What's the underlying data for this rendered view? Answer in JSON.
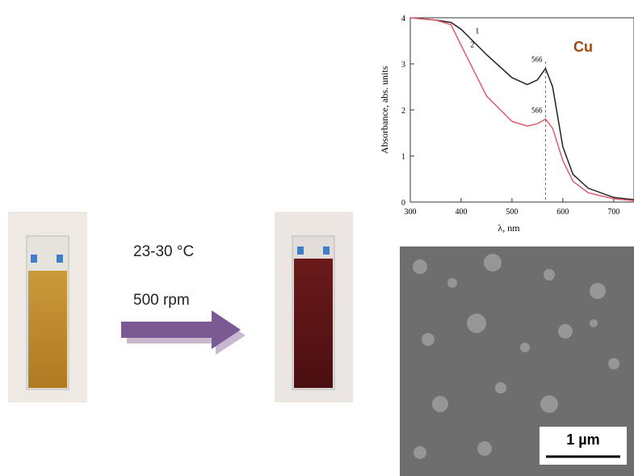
{
  "conditions": {
    "temperature": "23-30 °C",
    "speed": "500 rpm"
  },
  "scale_bar": "1 µm",
  "chart_data": {
    "type": "line",
    "x_label": "λ, nm",
    "y_label": "Absorbance, abs. units",
    "annotation": "Cu",
    "x": [
      300,
      350,
      380,
      400,
      450,
      500,
      530,
      550,
      566,
      580,
      600,
      620,
      650,
      700,
      740
    ],
    "series": [
      {
        "name": "1",
        "color": "#222222",
        "values": [
          4,
          3.95,
          3.9,
          3.75,
          3.2,
          2.7,
          2.55,
          2.65,
          2.9,
          2.5,
          1.2,
          0.6,
          0.3,
          0.1,
          0.05
        ]
      },
      {
        "name": "2",
        "color": "#e05a6a",
        "values": [
          4,
          3.95,
          3.85,
          3.4,
          2.3,
          1.75,
          1.65,
          1.7,
          1.8,
          1.6,
          0.9,
          0.45,
          0.2,
          0.07,
          0.03
        ]
      }
    ],
    "peak_labels": [
      "566",
      "566"
    ],
    "peak_line": 566,
    "xlim": [
      300,
      740
    ],
    "ylim": [
      0,
      4
    ],
    "xticks": [
      300,
      400,
      500,
      600,
      700
    ],
    "yticks": [
      0,
      1,
      2,
      3,
      4
    ]
  }
}
